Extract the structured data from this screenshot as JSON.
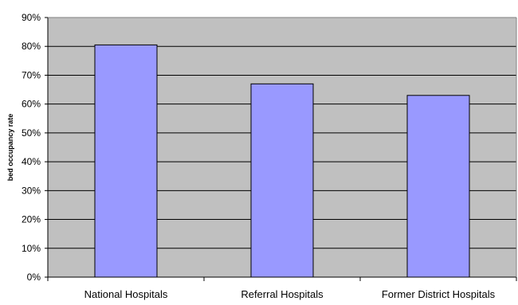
{
  "chart_data": {
    "type": "bar",
    "title": "",
    "xlabel": "",
    "ylabel": "bed occupancy rate",
    "categories": [
      "National Hospitals",
      "Referral Hospitals",
      "Former District Hospitals"
    ],
    "values": [
      80.5,
      67,
      63
    ],
    "value_unit": "%",
    "ylim": [
      0,
      90
    ],
    "yticks": [
      "0%",
      "10%",
      "20%",
      "30%",
      "40%",
      "50%",
      "60%",
      "70%",
      "80%",
      "90%"
    ],
    "grid": true,
    "legend": "none",
    "colors": {
      "bar_fill": "#9999ff",
      "bar_stroke": "#000000",
      "plot_background": "#c0c0c0",
      "grid_line": "#000000"
    }
  }
}
